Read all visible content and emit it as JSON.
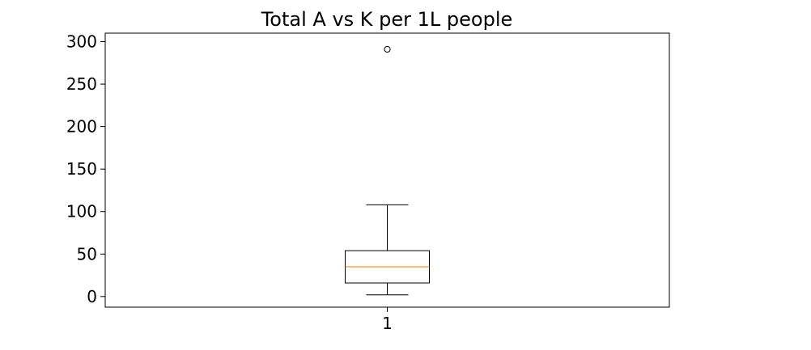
{
  "chart_data": {
    "type": "box",
    "title": "Total A vs K per 1L people",
    "xlabel": "",
    "ylabel": "",
    "categories": [
      "1"
    ],
    "ylim": [
      -12.5,
      310
    ],
    "yticks": [
      0,
      50,
      100,
      150,
      200,
      250,
      300
    ],
    "grid": false,
    "series": [
      {
        "whisker_low": 2,
        "q1": 16,
        "median": 35,
        "q3": 54,
        "whisker_high": 108,
        "outliers": [
          291
        ]
      }
    ],
    "colors": {
      "box": "#000000",
      "median": "#ff7f0e",
      "axes": "#000000"
    }
  }
}
